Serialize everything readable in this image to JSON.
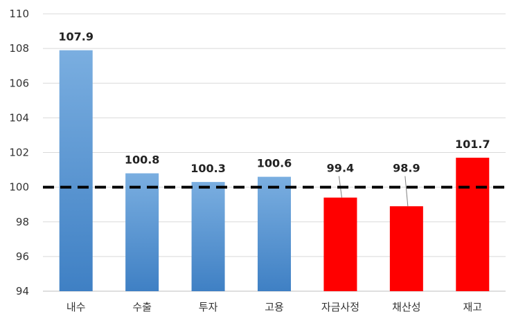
{
  "chart_data": {
    "type": "bar",
    "categories": [
      "내수",
      "수출",
      "투자",
      "고용",
      "자금사정",
      "채산성",
      "재고"
    ],
    "values": [
      107.9,
      100.8,
      100.3,
      100.6,
      99.4,
      98.9,
      101.7
    ],
    "data_labels": [
      "107.9",
      "100.8",
      "100.3",
      "100.6",
      "99.4",
      "98.9",
      "101.7"
    ],
    "colors": [
      "#5b9bd5",
      "#5b9bd5",
      "#5b9bd5",
      "#5b9bd5",
      "#ff0000",
      "#ff0000",
      "#ff0000"
    ],
    "y_ticks": [
      "94",
      "96",
      "98",
      "100",
      "102",
      "104",
      "106",
      "108",
      "110"
    ],
    "ylim": [
      94,
      110
    ],
    "reference_line": {
      "value": 100,
      "style": "dashed",
      "color": "#000000"
    },
    "grid": true,
    "title": "",
    "xlabel": "",
    "ylabel": ""
  }
}
